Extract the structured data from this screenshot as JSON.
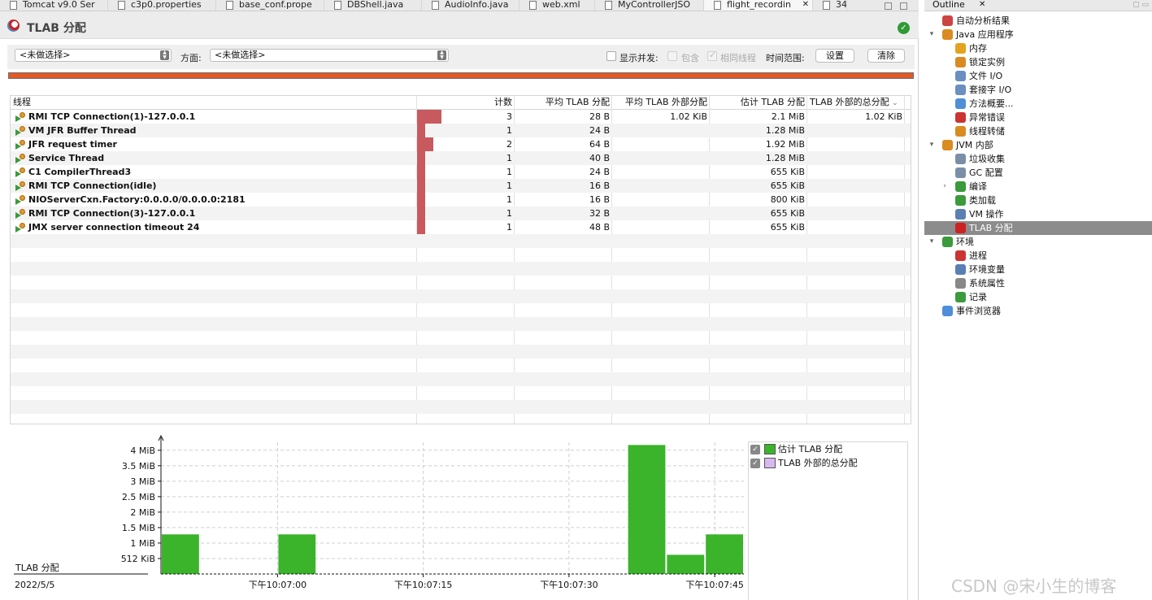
{
  "tabs": [
    {
      "label": "Tomcat v9.0 Ser",
      "icon": "document-icon"
    },
    {
      "label": "c3p0.properties",
      "icon": "document-icon"
    },
    {
      "label": "base_conf.prope",
      "icon": "document-icon"
    },
    {
      "label": "DBShell.java",
      "icon": "java-file-icon"
    },
    {
      "label": "AudioInfo.java",
      "icon": "java-file-icon"
    },
    {
      "label": "web.xml",
      "icon": "xml-file-icon"
    },
    {
      "label": "MyControllerJSO",
      "icon": "java-file-icon"
    },
    {
      "label": "flight_recordin",
      "icon": "recording-icon",
      "active": true
    },
    {
      "label": "34",
      "icon": "overflow-icon"
    }
  ],
  "page": {
    "title": "TLAB 分配",
    "aspect_label": "方面:",
    "thread_select": "<未做选择>",
    "aspect_select": "<未做选择>",
    "show_concurrent": "显示并发:",
    "include": "包含",
    "same_thread": "相同线程",
    "time_range": "时间范围:",
    "settings_button": "设置",
    "clear_button": "清除",
    "progress": 1.0,
    "progress_color": "#e15a28"
  },
  "table": {
    "columns": [
      "线程",
      "计数",
      "平均 TLAB 分配",
      "平均 TLAB 外部分配",
      "估计 TLAB 分配",
      "TLAB 外部的总分配"
    ],
    "bar_color": "#c85a5f",
    "rows": [
      {
        "thread": "RMI TCP Connection(1)-127.0.0.1",
        "count": "3",
        "avg": "28 B",
        "avg_outside": "1.02 KiB",
        "est": "2.1 MiB",
        "total_outside": "1.02 KiB",
        "bar_fraction": 1.0
      },
      {
        "thread": "VM JFR Buffer Thread",
        "count": "1",
        "avg": "24 B",
        "avg_outside": "",
        "est": "1.28 MiB",
        "total_outside": "",
        "bar_fraction": 0.33
      },
      {
        "thread": "JFR request timer",
        "count": "2",
        "avg": "64 B",
        "avg_outside": "",
        "est": "1.92 MiB",
        "total_outside": "",
        "bar_fraction": 0.67
      },
      {
        "thread": "Service Thread",
        "count": "1",
        "avg": "40 B",
        "avg_outside": "",
        "est": "1.28 MiB",
        "total_outside": "",
        "bar_fraction": 0.33
      },
      {
        "thread": "C1 CompilerThread3",
        "count": "1",
        "avg": "24 B",
        "avg_outside": "",
        "est": "655 KiB",
        "total_outside": "",
        "bar_fraction": 0.33
      },
      {
        "thread": "RMI TCP Connection(idle)",
        "count": "1",
        "avg": "16 B",
        "avg_outside": "",
        "est": "655 KiB",
        "total_outside": "",
        "bar_fraction": 0.33
      },
      {
        "thread": "NIOServerCxn.Factory:0.0.0.0/0.0.0.0:2181",
        "count": "1",
        "avg": "16 B",
        "avg_outside": "",
        "est": "800 KiB",
        "total_outside": "",
        "bar_fraction": 0.33
      },
      {
        "thread": "RMI TCP Connection(3)-127.0.0.1",
        "count": "1",
        "avg": "32 B",
        "avg_outside": "",
        "est": "655 KiB",
        "total_outside": "",
        "bar_fraction": 0.33
      },
      {
        "thread": "JMX server connection timeout 24",
        "count": "1",
        "avg": "48 B",
        "avg_outside": "",
        "est": "655 KiB",
        "total_outside": "",
        "bar_fraction": 0.33
      }
    ]
  },
  "chart_data": {
    "type": "bar",
    "ylabel": "TLAB 分配",
    "date_label": "2022/5/5",
    "y_ticks": [
      "512 KiB",
      "1 MiB",
      "1.5 MiB",
      "2 MiB",
      "2.5 MiB",
      "3 MiB",
      "3.5 MiB",
      "4 MiB"
    ],
    "y_tick_values_mib": [
      0.5,
      1,
      1.5,
      2,
      2.5,
      3,
      3.5,
      4
    ],
    "ylim_mib": [
      0,
      4.1
    ],
    "x_ticks": [
      "下午10:07:00",
      "下午10:07:15",
      "下午10:07:30",
      "下午10:07:45"
    ],
    "xlim": [
      "下午10:06:48",
      "下午10:07:48"
    ],
    "series": [
      {
        "name": "估计 TLAB 分配",
        "color": "#3bb32b",
        "bars": [
          {
            "start": "下午10:06:48",
            "end": "下午10:06:52",
            "value_mib": 1.28
          },
          {
            "start": "下午10:07:00",
            "end": "下午10:07:04",
            "value_mib": 1.28
          },
          {
            "start": "下午10:07:36",
            "end": "下午10:07:40",
            "value_mib": 4.17
          },
          {
            "start": "下午10:07:40",
            "end": "下午10:07:44",
            "value_mib": 0.62
          },
          {
            "start": "下午10:07:44",
            "end": "下午10:07:48",
            "value_mib": 1.28
          }
        ]
      },
      {
        "name": "TLAB 外部的总分配",
        "color": "#d8b8f0",
        "bars": []
      }
    ],
    "legend_position": "right",
    "grid": true
  },
  "outline": {
    "tab_label": "Outline",
    "items": [
      {
        "label": "自动分析结果",
        "level": 0,
        "twisty": "",
        "icon": "analysis-results-icon",
        "color": "#c44"
      },
      {
        "label": "Java 应用程序",
        "level": 0,
        "twisty": "▾",
        "icon": "java-application-icon",
        "color": "#d98b22"
      },
      {
        "label": "内存",
        "level": 1,
        "twisty": "",
        "icon": "memory-icon",
        "color": "#e3a21f"
      },
      {
        "label": "锁定实例",
        "level": 1,
        "twisty": "",
        "icon": "lock-instances-icon",
        "color": "#d98b22"
      },
      {
        "label": "文件 I/O",
        "level": 1,
        "twisty": "",
        "icon": "file-io-icon",
        "color": "#6a8fc0"
      },
      {
        "label": "套接字 I/O",
        "level": 1,
        "twisty": "",
        "icon": "socket-io-icon",
        "color": "#6a8fc0"
      },
      {
        "label": "方法概要...",
        "level": 1,
        "twisty": "",
        "icon": "method-profiling-icon",
        "color": "#4f8fd8"
      },
      {
        "label": "异常错误",
        "level": 1,
        "twisty": "",
        "icon": "exceptions-icon",
        "color": "#c33"
      },
      {
        "label": "线程转储",
        "level": 1,
        "twisty": "",
        "icon": "thread-dump-icon",
        "color": "#d98b22"
      },
      {
        "label": "JVM 内部",
        "level": 0,
        "twisty": "▾",
        "icon": "jvm-internals-icon",
        "color": "#d98b22"
      },
      {
        "label": "垃圾收集",
        "level": 1,
        "twisty": "",
        "icon": "garbage-collection-icon",
        "color": "#7b8ea8"
      },
      {
        "label": "GC 配置",
        "level": 1,
        "twisty": "",
        "icon": "gc-configuration-icon",
        "color": "#7b8ea8"
      },
      {
        "label": "编译",
        "level": 1,
        "twisty": "›",
        "icon": "compilation-icon",
        "color": "#3b9a3b"
      },
      {
        "label": "类加载",
        "level": 1,
        "twisty": "",
        "icon": "class-loading-icon",
        "color": "#3b9a3b"
      },
      {
        "label": "VM 操作",
        "level": 1,
        "twisty": "",
        "icon": "vm-operations-icon",
        "color": "#5a7fb5"
      },
      {
        "label": "TLAB 分配",
        "level": 1,
        "twisty": "",
        "icon": "tlab-allocations-icon",
        "color": "#c22",
        "selected": true
      },
      {
        "label": "环境",
        "level": 0,
        "twisty": "▾",
        "icon": "environment-icon",
        "color": "#3b9a3b"
      },
      {
        "label": "进程",
        "level": 1,
        "twisty": "",
        "icon": "processes-icon",
        "color": "#c33"
      },
      {
        "label": "环境变量",
        "level": 1,
        "twisty": "",
        "icon": "environment-variables-icon",
        "color": "#5a7fb5"
      },
      {
        "label": "系统属性",
        "level": 1,
        "twisty": "",
        "icon": "system-properties-icon",
        "color": "#888"
      },
      {
        "label": "记录",
        "level": 1,
        "twisty": "",
        "icon": "recording-icon",
        "color": "#3b9a3b"
      },
      {
        "label": "事件浏览器",
        "level": 0,
        "twisty": "",
        "icon": "event-browser-icon",
        "color": "#4f8fd8"
      }
    ]
  },
  "watermark": "CSDN @宋小生的博客"
}
